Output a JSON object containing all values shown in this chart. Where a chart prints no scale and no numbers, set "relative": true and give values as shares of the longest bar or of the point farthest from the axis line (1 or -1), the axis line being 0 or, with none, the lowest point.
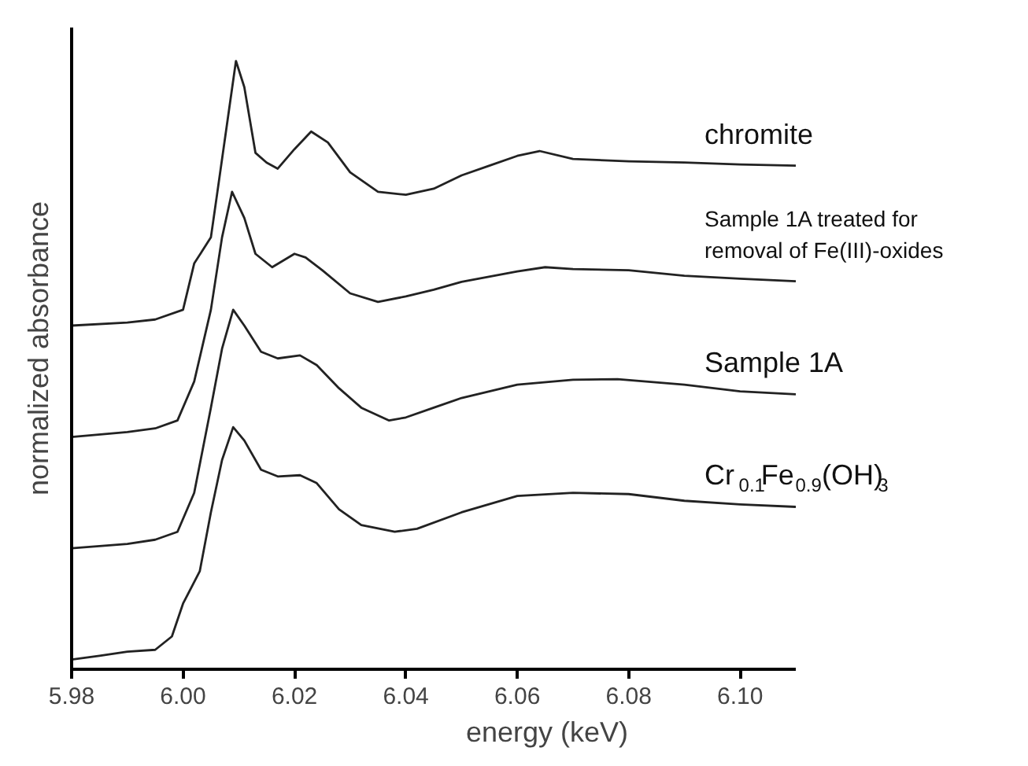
{
  "chart_data": {
    "type": "line",
    "relative": true,
    "xlabel": "energy (keV)",
    "ylabel": "normalized absorbance",
    "xlim": [
      5.98,
      6.11
    ],
    "xticks": [
      5.98,
      {
        "value": 6.0,
        "label": "6.00"
      },
      6.02,
      6.04,
      6.06,
      6.08,
      {
        "value": 6.1,
        "label": "6.10"
      }
    ],
    "tick_labels": "x",
    "grid": false,
    "legend": false,
    "marker": "none",
    "line_style": "solid",
    "series": [
      {
        "name": "chromite",
        "color": "#222222",
        "x": [
          5.98,
          5.99,
          5.995,
          6.0,
          6.002,
          6.005,
          6.006,
          6.008,
          6.0095,
          6.011,
          6.013,
          6.015,
          6.017,
          6.02,
          6.023,
          6.026,
          6.03,
          6.035,
          6.04,
          6.045,
          6.05,
          6.055,
          6.06,
          6.064,
          6.07,
          6.08,
          6.09,
          6.1,
          6.11
        ],
        "values": [
          0.565,
          0.57,
          0.575,
          0.591,
          0.667,
          0.71,
          0.774,
          0.903,
          1.0,
          0.957,
          0.849,
          0.833,
          0.823,
          0.855,
          0.884,
          0.866,
          0.817,
          0.785,
          0.78,
          0.79,
          0.812,
          0.828,
          0.844,
          0.852,
          0.839,
          0.835,
          0.833,
          0.83,
          0.828
        ]
      },
      {
        "name": "Sample 1A treated for\nremoval of Fe(III)-oxides",
        "color": "#222222",
        "x": [
          5.98,
          5.99,
          5.995,
          5.999,
          6.002,
          6.005,
          6.007,
          6.0088,
          6.011,
          6.013,
          6.016,
          6.02,
          6.022,
          6.025,
          6.03,
          6.035,
          6.04,
          6.045,
          6.05,
          6.06,
          6.065,
          6.07,
          6.08,
          6.09,
          6.1,
          6.11
        ],
        "values": [
          0.382,
          0.39,
          0.396,
          0.409,
          0.473,
          0.591,
          0.71,
          0.785,
          0.742,
          0.683,
          0.661,
          0.683,
          0.677,
          0.656,
          0.618,
          0.604,
          0.613,
          0.624,
          0.637,
          0.654,
          0.661,
          0.658,
          0.656,
          0.647,
          0.642,
          0.638
        ]
      },
      {
        "name": "Sample 1A",
        "color": "#222222",
        "x": [
          5.98,
          5.99,
          5.995,
          5.999,
          6.002,
          6.005,
          6.007,
          6.009,
          6.011,
          6.014,
          6.017,
          6.021,
          6.024,
          6.028,
          6.032,
          6.037,
          6.04,
          6.045,
          6.05,
          6.06,
          6.07,
          6.078,
          6.09,
          6.1,
          6.11
        ],
        "values": [
          0.199,
          0.206,
          0.213,
          0.226,
          0.29,
          0.43,
          0.527,
          0.591,
          0.565,
          0.522,
          0.511,
          0.516,
          0.5,
          0.462,
          0.43,
          0.409,
          0.414,
          0.43,
          0.446,
          0.468,
          0.476,
          0.477,
          0.468,
          0.457,
          0.452
        ]
      },
      {
        "name": "Cr$_{0.1}$Fe$_{0.9}$(OH)$_{3}$",
        "color": "#222222",
        "x": [
          5.98,
          5.985,
          5.99,
          5.995,
          5.998,
          6.0,
          6.003,
          6.005,
          6.007,
          6.009,
          6.011,
          6.014,
          6.017,
          6.021,
          6.024,
          6.028,
          6.032,
          6.038,
          6.042,
          6.05,
          6.06,
          6.07,
          6.08,
          6.09,
          6.1,
          6.11
        ],
        "values": [
          0.016,
          0.022,
          0.029,
          0.032,
          0.054,
          0.108,
          0.161,
          0.258,
          0.344,
          0.398,
          0.376,
          0.328,
          0.317,
          0.319,
          0.306,
          0.263,
          0.237,
          0.226,
          0.231,
          0.258,
          0.285,
          0.29,
          0.288,
          0.277,
          0.271,
          0.267
        ]
      }
    ]
  }
}
